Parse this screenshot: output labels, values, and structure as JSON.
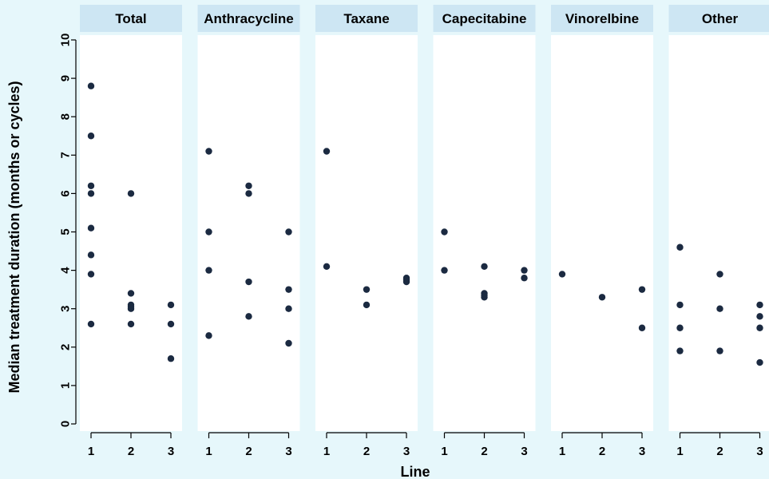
{
  "chart_data": {
    "type": "scatter",
    "ylabel": "Median treatment duration (months or cycles)",
    "xlabel": "Line",
    "ylim": [
      0,
      10
    ],
    "yticks": [
      0,
      1,
      2,
      3,
      4,
      5,
      6,
      7,
      8,
      9,
      10
    ],
    "xticks": [
      1,
      2,
      3
    ],
    "grid": false,
    "colors": {
      "background": "#e6f7fb",
      "panel": "#ffffff",
      "strip": "#cde6f3",
      "point": "#1b2a41",
      "axis": "#000000"
    },
    "panels": [
      {
        "title": "Total",
        "points": [
          {
            "x": 1,
            "y": 8.8
          },
          {
            "x": 1,
            "y": 7.5
          },
          {
            "x": 1,
            "y": 6.2
          },
          {
            "x": 1,
            "y": 6.0
          },
          {
            "x": 1,
            "y": 5.1
          },
          {
            "x": 1,
            "y": 4.4
          },
          {
            "x": 1,
            "y": 3.9
          },
          {
            "x": 1,
            "y": 2.6
          },
          {
            "x": 2,
            "y": 6.0
          },
          {
            "x": 2,
            "y": 3.4
          },
          {
            "x": 2,
            "y": 3.1
          },
          {
            "x": 2,
            "y": 3.05
          },
          {
            "x": 2,
            "y": 3.0
          },
          {
            "x": 2,
            "y": 2.6
          },
          {
            "x": 3,
            "y": 3.1
          },
          {
            "x": 3,
            "y": 2.6
          },
          {
            "x": 3,
            "y": 1.7
          }
        ]
      },
      {
        "title": "Anthracycline",
        "points": [
          {
            "x": 1,
            "y": 7.1
          },
          {
            "x": 1,
            "y": 5.0
          },
          {
            "x": 1,
            "y": 4.0
          },
          {
            "x": 1,
            "y": 2.3
          },
          {
            "x": 2,
            "y": 6.2
          },
          {
            "x": 2,
            "y": 6.0
          },
          {
            "x": 2,
            "y": 3.7
          },
          {
            "x": 2,
            "y": 2.8
          },
          {
            "x": 3,
            "y": 5.0
          },
          {
            "x": 3,
            "y": 3.5
          },
          {
            "x": 3,
            "y": 3.0
          },
          {
            "x": 3,
            "y": 2.1
          }
        ]
      },
      {
        "title": "Taxane",
        "points": [
          {
            "x": 1,
            "y": 7.1
          },
          {
            "x": 1,
            "y": 4.1
          },
          {
            "x": 2,
            "y": 3.5
          },
          {
            "x": 2,
            "y": 3.1
          },
          {
            "x": 3,
            "y": 3.8
          },
          {
            "x": 3,
            "y": 3.75
          },
          {
            "x": 3,
            "y": 3.7
          }
        ]
      },
      {
        "title": "Capecitabine",
        "points": [
          {
            "x": 1,
            "y": 5.0
          },
          {
            "x": 1,
            "y": 4.0
          },
          {
            "x": 2,
            "y": 4.1
          },
          {
            "x": 2,
            "y": 3.4
          },
          {
            "x": 2,
            "y": 3.35
          },
          {
            "x": 2,
            "y": 3.3
          },
          {
            "x": 3,
            "y": 4.0
          },
          {
            "x": 3,
            "y": 3.8
          }
        ]
      },
      {
        "title": "Vinorelbine",
        "points": [
          {
            "x": 1,
            "y": 3.9
          },
          {
            "x": 2,
            "y": 3.3
          },
          {
            "x": 3,
            "y": 3.5
          },
          {
            "x": 3,
            "y": 2.5
          }
        ]
      },
      {
        "title": "Other",
        "points": [
          {
            "x": 1,
            "y": 4.6
          },
          {
            "x": 1,
            "y": 3.1
          },
          {
            "x": 1,
            "y": 2.5
          },
          {
            "x": 1,
            "y": 1.9
          },
          {
            "x": 2,
            "y": 3.9
          },
          {
            "x": 2,
            "y": 3.0
          },
          {
            "x": 2,
            "y": 1.9
          },
          {
            "x": 3,
            "y": 3.1
          },
          {
            "x": 3,
            "y": 2.8
          },
          {
            "x": 3,
            "y": 2.5
          },
          {
            "x": 3,
            "y": 1.6
          }
        ]
      }
    ]
  }
}
